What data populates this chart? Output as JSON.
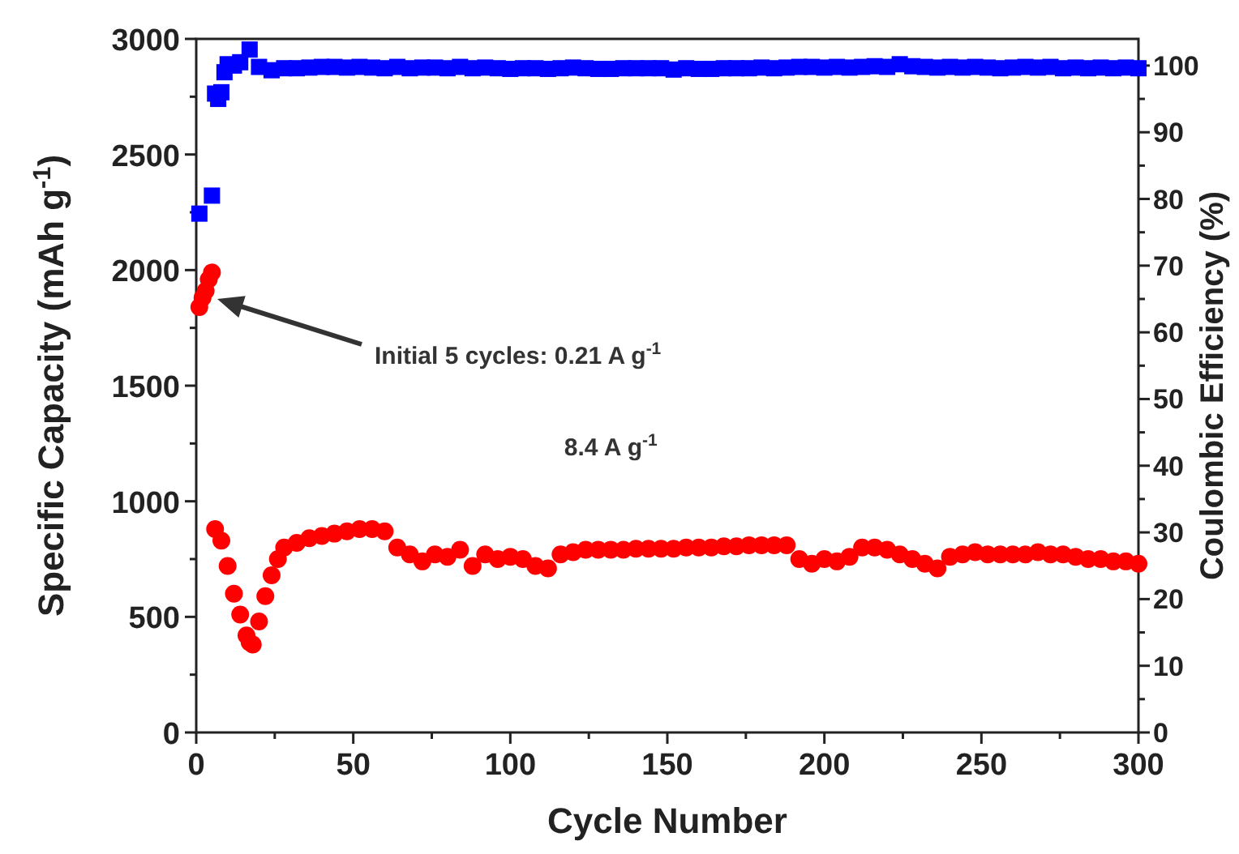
{
  "chart_data": {
    "type": "scatter",
    "xlabel": "Cycle Number",
    "ylabel": "Specific Capacity (mAh g$^{-1}$)",
    "y2label": "Coulombic Efficiency (%)",
    "xlim": [
      0,
      300
    ],
    "xticks": [
      0,
      {
        "value": 25,
        "label": null
      },
      50,
      {
        "value": 75,
        "label": null
      },
      100,
      {
        "value": 125,
        "label": null
      },
      150,
      {
        "value": 175,
        "label": null
      },
      200,
      {
        "value": 225,
        "label": null
      },
      250,
      {
        "value": 275,
        "label": null
      },
      300
    ],
    "ylim": [
      0,
      3000
    ],
    "yticks": [
      0,
      {
        "value": 250,
        "label": null
      },
      500,
      {
        "value": 750,
        "label": null
      },
      1000,
      {
        "value": 1250,
        "label": null
      },
      1500,
      {
        "value": 1750,
        "label": null
      },
      2000,
      {
        "value": 2250,
        "label": null
      },
      2500,
      {
        "value": 2750,
        "label": null
      },
      3000
    ],
    "y2lim": [
      0,
      104
    ],
    "y2ticks": [
      0,
      {
        "value": 5,
        "label": null
      },
      10,
      {
        "value": 15,
        "label": null
      },
      20,
      {
        "value": 25,
        "label": null
      },
      30,
      {
        "value": 35,
        "label": null
      },
      40,
      {
        "value": 45,
        "label": null
      },
      50,
      {
        "value": 55,
        "label": null
      },
      60,
      {
        "value": 65,
        "label": null
      },
      70,
      {
        "value": 75,
        "label": null
      },
      80,
      {
        "value": 85,
        "label": null
      },
      90,
      {
        "value": 95,
        "label": null
      },
      100
    ],
    "grid": false,
    "series": [
      {
        "color": "#ff0000",
        "marker": "circle",
        "x": [
          1,
          2,
          3,
          4,
          5,
          6,
          8,
          10,
          12,
          14,
          16,
          17,
          18,
          20,
          22,
          24,
          26,
          28,
          32,
          36,
          40,
          44,
          48,
          52,
          56,
          60,
          64,
          68,
          72,
          76,
          80,
          84,
          88,
          92,
          96,
          100,
          104,
          108,
          112,
          116,
          120,
          124,
          128,
          132,
          136,
          140,
          144,
          148,
          152,
          156,
          160,
          164,
          168,
          172,
          176,
          180,
          184,
          188,
          192,
          196,
          200,
          204,
          208,
          212,
          216,
          220,
          224,
          228,
          232,
          236,
          240,
          244,
          248,
          252,
          256,
          260,
          264,
          268,
          272,
          276,
          280,
          284,
          288,
          292,
          296,
          300
        ],
        "values": [
          1840,
          1880,
          1910,
          1960,
          1990,
          880,
          830,
          720,
          600,
          510,
          420,
          390,
          380,
          480,
          590,
          680,
          750,
          800,
          820,
          840,
          850,
          860,
          870,
          880,
          880,
          870,
          800,
          770,
          740,
          770,
          760,
          790,
          720,
          770,
          750,
          760,
          750,
          720,
          710,
          770,
          780,
          790,
          790,
          790,
          790,
          795,
          795,
          795,
          795,
          800,
          800,
          800,
          805,
          805,
          810,
          810,
          810,
          810,
          750,
          730,
          750,
          740,
          760,
          800,
          800,
          790,
          770,
          750,
          730,
          710,
          760,
          770,
          780,
          770,
          770,
          770,
          770,
          780,
          770,
          770,
          760,
          750,
          750,
          740,
          740,
          730
        ]
      },
      {
        "color": "#0000ff",
        "marker": "square",
        "axis": "y2",
        "x": [
          1,
          5,
          6,
          7,
          8,
          9,
          10,
          12,
          14,
          17,
          20,
          24,
          28,
          32,
          36,
          40,
          44,
          48,
          52,
          56,
          60,
          64,
          68,
          72,
          76,
          80,
          84,
          88,
          92,
          96,
          100,
          104,
          108,
          112,
          116,
          120,
          124,
          128,
          132,
          136,
          140,
          144,
          148,
          152,
          156,
          160,
          164,
          168,
          172,
          176,
          180,
          184,
          188,
          192,
          196,
          200,
          204,
          208,
          212,
          216,
          220,
          224,
          228,
          232,
          236,
          240,
          244,
          248,
          252,
          256,
          260,
          264,
          268,
          272,
          276,
          280,
          284,
          288,
          292,
          296,
          300
        ],
        "values": [
          77.8,
          80.5,
          95.8,
          95,
          96,
          99,
          100.2,
          100,
          100.5,
          102.4,
          99.8,
          99.3,
          99.6,
          99.6,
          99.7,
          99.8,
          99.8,
          99.7,
          99.8,
          99.7,
          99.6,
          99.8,
          99.6,
          99.7,
          99.7,
          99.6,
          99.8,
          99.6,
          99.7,
          99.6,
          99.5,
          99.6,
          99.6,
          99.5,
          99.6,
          99.7,
          99.6,
          99.5,
          99.5,
          99.6,
          99.6,
          99.6,
          99.6,
          99.4,
          99.6,
          99.5,
          99.5,
          99.6,
          99.6,
          99.6,
          99.7,
          99.6,
          99.7,
          99.8,
          99.8,
          99.7,
          99.8,
          99.7,
          99.8,
          99.9,
          99.8,
          100.2,
          99.9,
          99.8,
          99.7,
          99.8,
          99.7,
          99.8,
          99.7,
          99.6,
          99.7,
          99.8,
          99.7,
          99.8,
          99.6,
          99.7,
          99.6,
          99.7,
          99.6,
          99.7,
          99.6
        ]
      }
    ],
    "annotations": [
      "Initial 5 cycles: 0.21 A g$^{-1}$",
      "8.4 A g$^{-1}$"
    ]
  }
}
